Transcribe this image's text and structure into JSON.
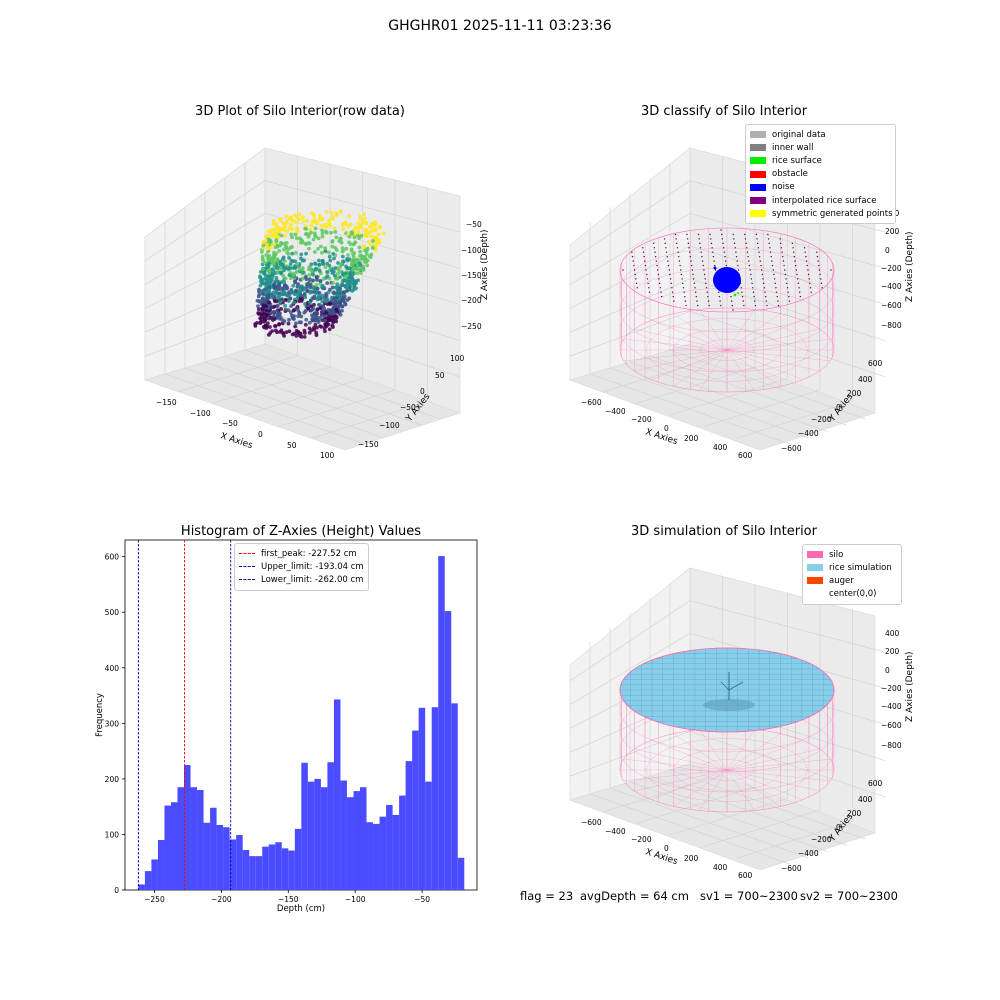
{
  "figure": {
    "title": "GHGHR01 2025-11-11 03:23:36",
    "footer": {
      "flag": "flag = 23",
      "avg_depth": "avgDepth = 64 cm",
      "sv1": "sv1 = 700~2300",
      "sv2": "sv2 = 700~2300"
    }
  },
  "panel1": {
    "title": "3D Plot of Silo Interior(row data)",
    "xlabel": "X Axies",
    "ylabel": "Y Axies",
    "zlabel": "Z Axies (Depth)",
    "x_ticks": [
      "−150",
      "−100",
      "−50",
      "0",
      "50",
      "100"
    ],
    "y_ticks": [
      "100",
      "50",
      "0",
      "−50",
      "−100",
      "−150"
    ],
    "z_ticks": [
      "−50",
      "−100",
      "−150",
      "−200",
      "−250"
    ],
    "colormap": [
      "#440154",
      "#3b528b",
      "#21918c",
      "#5ec962",
      "#fde725"
    ]
  },
  "panel2": {
    "title": "3D classify of Silo Interior",
    "xlabel": "X Axies",
    "ylabel": "Y Axies",
    "zlabel": "Z Axies (Depth)",
    "x_ticks": [
      "−600",
      "−400",
      "−200",
      "0",
      "200",
      "400",
      "600"
    ],
    "y_ticks": [
      "600",
      "400",
      "200",
      "0",
      "−200",
      "−400",
      "−600"
    ],
    "z_ticks": [
      "400",
      "200",
      "0",
      "−200",
      "−400",
      "−600",
      "−800"
    ],
    "legend": [
      {
        "label": "original data",
        "color": "#b0b0b0"
      },
      {
        "label": "inner wall",
        "color": "#808080"
      },
      {
        "label": "rice surface",
        "color": "#00ee00"
      },
      {
        "label": "obstacle",
        "color": "#ff0000"
      },
      {
        "label": "noise",
        "color": "#0000ff"
      },
      {
        "label": "interpolated rice surface",
        "color": "#800080"
      },
      {
        "label": "symmetric generated points",
        "color": "#ffff00"
      }
    ]
  },
  "panel4": {
    "title": "3D simulation of Silo Interior",
    "xlabel": "X Axies",
    "ylabel": "Y Axies",
    "zlabel": "Z Axies (Depth)",
    "x_ticks": [
      "−600",
      "−400",
      "−200",
      "0",
      "200",
      "400",
      "600"
    ],
    "y_ticks": [
      "600",
      "400",
      "200",
      "0",
      "−200",
      "−400",
      "−600"
    ],
    "z_ticks": [
      "400",
      "200",
      "0",
      "−200",
      "−400",
      "−600",
      "−800"
    ],
    "legend": [
      {
        "label": "silo",
        "color": "#ff69b4"
      },
      {
        "label": "rice simulation",
        "color": "#87ceeb"
      },
      {
        "label": "auger",
        "color": "#ff4500"
      },
      {
        "label": "center(0,0)",
        "color": ""
      }
    ]
  },
  "chart_data": [
    {
      "type": "histogram",
      "title": "Histogram of Z-Axies (Height) Values",
      "xlabel": "Depth (cm)",
      "ylabel": "Frequency",
      "xlim": [
        -272,
        -9
      ],
      "ylim": [
        0,
        630
      ],
      "x_ticks": [
        -250,
        -200,
        -150,
        -100,
        -50
      ],
      "x_tick_labels": [
        "−250",
        "−200",
        "−150",
        "−100",
        "−50"
      ],
      "y_ticks": [
        0,
        100,
        200,
        300,
        400,
        500,
        600
      ],
      "bin_start": -262,
      "bin_width": 4.87,
      "values": [
        10,
        34,
        55,
        90,
        152,
        158,
        185,
        225,
        185,
        180,
        121,
        148,
        117,
        113,
        91,
        99,
        72,
        61,
        61,
        78,
        82,
        86,
        75,
        71,
        110,
        229,
        195,
        200,
        185,
        230,
        343,
        197,
        167,
        178,
        185,
        122,
        119,
        132,
        153,
        135,
        170,
        232,
        287,
        328,
        195,
        329,
        601,
        502,
        336,
        58
      ],
      "bar_color": "#4b4bff",
      "vlines": [
        {
          "label": "first_peak: -227.52 cm",
          "x": -227.52,
          "color": "#ff0000"
        },
        {
          "label": "Upper_limit: -193.04 cm",
          "x": -193.04,
          "color": "#0000aa"
        },
        {
          "label": "Lower_limit: -262.00 cm",
          "x": -262.0,
          "color": "#0000aa"
        }
      ],
      "legend_position": "top-left"
    }
  ]
}
